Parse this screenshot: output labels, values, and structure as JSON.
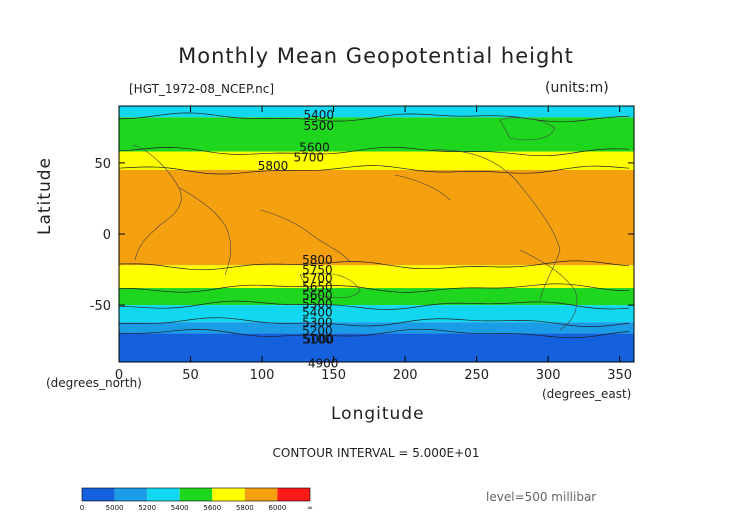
{
  "chart_data": {
    "type": "heatmap",
    "title": "Monthly Mean Geopotential height",
    "file_label": "[HGT_1972-08_NCEP.nc]",
    "units_label": "(units:m)",
    "xlabel": "Longitude",
    "ylabel": "Latitude",
    "x_units": "(degrees_east)",
    "y_units": "(degrees_north)",
    "xlim": [
      0,
      360
    ],
    "ylim": [
      -90,
      90
    ],
    "x_ticks": [
      0,
      50,
      100,
      150,
      200,
      250,
      300,
      350
    ],
    "y_ticks": [
      -50,
      0,
      50
    ],
    "contour_interval": "CONTOUR INTERVAL = 5.000E+01",
    "level": "level=500 millibar",
    "contour_labels": [
      {
        "text": "5400",
        "lon": 129,
        "lat": 81
      },
      {
        "text": "5500",
        "lon": 129,
        "lat": 73
      },
      {
        "text": "5600",
        "lon": 126,
        "lat": 58
      },
      {
        "text": "5700",
        "lon": 122,
        "lat": 51
      },
      {
        "text": "5800",
        "lon": 97,
        "lat": 45
      },
      {
        "text": "5800",
        "lon": 128,
        "lat": -21
      },
      {
        "text": "5750",
        "lon": 128,
        "lat": -28
      },
      {
        "text": "5700",
        "lon": 128,
        "lat": -34
      },
      {
        "text": "5650",
        "lon": 128,
        "lat": -40
      },
      {
        "text": "5600",
        "lon": 128,
        "lat": -46
      },
      {
        "text": "5500",
        "lon": 128,
        "lat": -52
      },
      {
        "text": "5400",
        "lon": 128,
        "lat": -58
      },
      {
        "text": "5300",
        "lon": 128,
        "lat": -65
      },
      {
        "text": "5200",
        "lon": 128,
        "lat": -71
      },
      {
        "text": "5100",
        "lon": 128,
        "lat": -77
      },
      {
        "text": "5000",
        "lon": 129,
        "lat": -77
      },
      {
        "text": "4900",
        "lon": 132,
        "lat": -94
      }
    ],
    "bands": [
      {
        "lat_top": 90,
        "lat_bottom": 82,
        "value_band": "5200-5400",
        "color": "#11d8f0"
      },
      {
        "lat_top": 82,
        "lat_bottom": 58,
        "value_band": "5400-5600",
        "color": "#1ed61e"
      },
      {
        "lat_top": 58,
        "lat_bottom": 45,
        "value_band": "5600-5800",
        "color": "#ffff00"
      },
      {
        "lat_top": 45,
        "lat_bottom": -22,
        "value_band": "5800-6000",
        "color": "#f5a00f"
      },
      {
        "lat_top": -22,
        "lat_bottom": -38,
        "value_band": "5600-5800",
        "color": "#ffff00"
      },
      {
        "lat_top": -38,
        "lat_bottom": -50,
        "value_band": "5400-5600",
        "color": "#1ed61e"
      },
      {
        "lat_top": -50,
        "lat_bottom": -62,
        "value_band": "5200-5400",
        "color": "#11d8f0"
      },
      {
        "lat_top": -62,
        "lat_bottom": -70,
        "value_band": "5000-5200",
        "color": "#1a9de6"
      },
      {
        "lat_top": -70,
        "lat_bottom": -90,
        "value_band": "0-5000",
        "color": "#1560dc"
      }
    ],
    "colorbar": {
      "labels": [
        "0",
        "5000",
        "5200",
        "5400",
        "5600",
        "5800",
        "6000",
        "∞"
      ],
      "colors": [
        "#1560dc",
        "#1a9de6",
        "#11d8f0",
        "#1ed61e",
        "#ffff00",
        "#f5a00f",
        "#ff1a1a"
      ]
    }
  }
}
